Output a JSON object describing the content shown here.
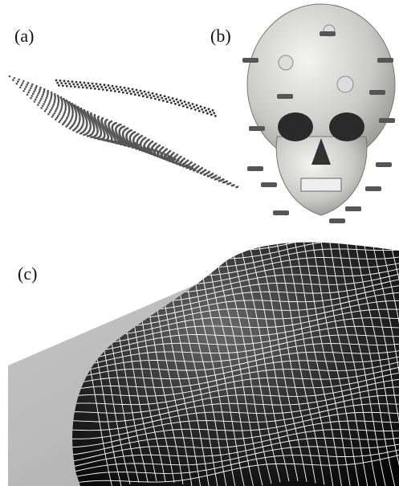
{
  "panels": [
    {
      "label": "(a)"
    },
    {
      "label": "(b)"
    },
    {
      "label": "(c)"
    }
  ]
}
